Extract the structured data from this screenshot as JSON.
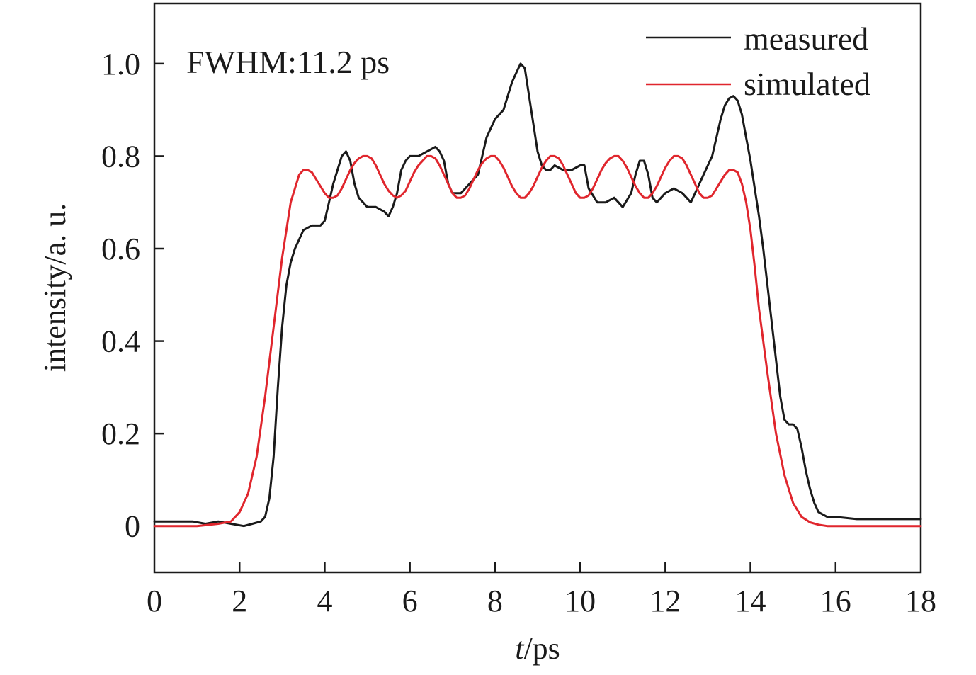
{
  "chart_data": {
    "type": "line",
    "title": "",
    "annotation": "FWHM:11.2 ps",
    "xlabel_italic": "t",
    "xlabel_unit": "/ps",
    "ylabel": "intensity/a. u.",
    "xlim": [
      0,
      18
    ],
    "ylim": [
      -0.1,
      1.13
    ],
    "xticks": [
      0,
      2,
      4,
      6,
      8,
      10,
      12,
      14,
      16,
      18
    ],
    "xtick_labels": [
      "0",
      "2",
      "4",
      "6",
      "8",
      "10",
      "12",
      "14",
      "16",
      "18"
    ],
    "yticks": [
      0,
      0.2,
      0.4,
      0.6,
      0.8,
      1.0
    ],
    "ytick_labels": [
      "0",
      "0.2",
      "0.4",
      "0.6",
      "0.8",
      "1.0"
    ],
    "grid": false,
    "legend_position": "top-right",
    "series": [
      {
        "name": "measured",
        "color": "#1a1a1a",
        "x": [
          0,
          0.3,
          0.6,
          0.9,
          1.2,
          1.5,
          1.8,
          2.1,
          2.3,
          2.5,
          2.6,
          2.7,
          2.8,
          2.9,
          3.0,
          3.1,
          3.2,
          3.3,
          3.4,
          3.5,
          3.6,
          3.7,
          3.8,
          3.9,
          4.0,
          4.1,
          4.2,
          4.3,
          4.4,
          4.5,
          4.6,
          4.7,
          4.8,
          4.9,
          5.0,
          5.2,
          5.4,
          5.5,
          5.6,
          5.7,
          5.8,
          5.9,
          6.0,
          6.2,
          6.4,
          6.6,
          6.7,
          6.8,
          6.9,
          7.0,
          7.1,
          7.2,
          7.4,
          7.6,
          7.8,
          8.0,
          8.2,
          8.3,
          8.4,
          8.5,
          8.6,
          8.7,
          8.8,
          8.9,
          9.0,
          9.1,
          9.2,
          9.3,
          9.4,
          9.6,
          9.8,
          10.0,
          10.1,
          10.2,
          10.4,
          10.6,
          10.8,
          11.0,
          11.2,
          11.3,
          11.4,
          11.5,
          11.6,
          11.7,
          11.8,
          11.9,
          12.0,
          12.2,
          12.4,
          12.6,
          12.8,
          13.0,
          13.1,
          13.2,
          13.3,
          13.4,
          13.5,
          13.6,
          13.7,
          13.8,
          13.9,
          14.0,
          14.1,
          14.2,
          14.3,
          14.4,
          14.5,
          14.6,
          14.7,
          14.8,
          14.9,
          15.0,
          15.1,
          15.2,
          15.3,
          15.4,
          15.5,
          15.6,
          15.8,
          16.0,
          16.5,
          17.0,
          17.5,
          18.0
        ],
        "y": [
          0.01,
          0.01,
          0.01,
          0.01,
          0.005,
          0.01,
          0.005,
          0.0,
          0.005,
          0.01,
          0.02,
          0.06,
          0.15,
          0.3,
          0.43,
          0.52,
          0.57,
          0.6,
          0.62,
          0.64,
          0.645,
          0.65,
          0.65,
          0.65,
          0.66,
          0.7,
          0.74,
          0.77,
          0.8,
          0.81,
          0.79,
          0.74,
          0.71,
          0.7,
          0.69,
          0.69,
          0.68,
          0.67,
          0.69,
          0.72,
          0.77,
          0.79,
          0.8,
          0.8,
          0.81,
          0.82,
          0.81,
          0.79,
          0.74,
          0.72,
          0.72,
          0.72,
          0.74,
          0.76,
          0.84,
          0.88,
          0.9,
          0.93,
          0.96,
          0.98,
          1.0,
          0.99,
          0.93,
          0.87,
          0.81,
          0.78,
          0.77,
          0.77,
          0.78,
          0.77,
          0.77,
          0.78,
          0.78,
          0.73,
          0.7,
          0.7,
          0.71,
          0.69,
          0.72,
          0.76,
          0.79,
          0.79,
          0.76,
          0.71,
          0.7,
          0.71,
          0.72,
          0.73,
          0.72,
          0.7,
          0.74,
          0.78,
          0.8,
          0.84,
          0.88,
          0.91,
          0.925,
          0.93,
          0.92,
          0.89,
          0.84,
          0.79,
          0.73,
          0.67,
          0.6,
          0.52,
          0.44,
          0.36,
          0.28,
          0.23,
          0.22,
          0.22,
          0.21,
          0.17,
          0.12,
          0.08,
          0.05,
          0.03,
          0.02,
          0.02,
          0.015,
          0.015,
          0.015,
          0.015
        ]
      },
      {
        "name": "simulated",
        "color": "#e0262d",
        "x": [
          0,
          0.5,
          1.0,
          1.5,
          1.8,
          2.0,
          2.2,
          2.4,
          2.6,
          2.8,
          3.0,
          3.2,
          3.4,
          3.5,
          3.6,
          3.7,
          3.8,
          3.9,
          4.0,
          4.1,
          4.2,
          4.3,
          4.4,
          4.5,
          4.6,
          4.7,
          4.8,
          4.9,
          5.0,
          5.1,
          5.2,
          5.3,
          5.4,
          5.5,
          5.6,
          5.7,
          5.8,
          5.9,
          6.0,
          6.1,
          6.2,
          6.3,
          6.4,
          6.5,
          6.6,
          6.7,
          6.8,
          6.9,
          7.0,
          7.1,
          7.2,
          7.3,
          7.4,
          7.5,
          7.6,
          7.7,
          7.8,
          7.9,
          8.0,
          8.1,
          8.2,
          8.3,
          8.4,
          8.5,
          8.6,
          8.7,
          8.8,
          8.9,
          9.0,
          9.1,
          9.2,
          9.3,
          9.4,
          9.5,
          9.6,
          9.7,
          9.8,
          9.9,
          10.0,
          10.1,
          10.2,
          10.3,
          10.4,
          10.5,
          10.6,
          10.7,
          10.8,
          10.9,
          11.0,
          11.1,
          11.2,
          11.3,
          11.4,
          11.5,
          11.6,
          11.7,
          11.8,
          11.9,
          12.0,
          12.1,
          12.2,
          12.3,
          12.4,
          12.5,
          12.6,
          12.7,
          12.8,
          12.9,
          13.0,
          13.1,
          13.2,
          13.3,
          13.4,
          13.5,
          13.6,
          13.7,
          13.8,
          13.9,
          14.0,
          14.1,
          14.2,
          14.4,
          14.6,
          14.8,
          15.0,
          15.2,
          15.4,
          15.6,
          15.8,
          16.0,
          16.3,
          16.6,
          17.0,
          17.5,
          18.0
        ],
        "y": [
          0.0,
          0.0,
          0.0,
          0.005,
          0.01,
          0.03,
          0.07,
          0.15,
          0.28,
          0.43,
          0.58,
          0.7,
          0.76,
          0.77,
          0.77,
          0.765,
          0.75,
          0.735,
          0.72,
          0.71,
          0.71,
          0.715,
          0.73,
          0.75,
          0.77,
          0.785,
          0.795,
          0.8,
          0.8,
          0.795,
          0.78,
          0.76,
          0.74,
          0.725,
          0.715,
          0.71,
          0.715,
          0.725,
          0.745,
          0.765,
          0.78,
          0.79,
          0.8,
          0.8,
          0.795,
          0.78,
          0.76,
          0.74,
          0.72,
          0.71,
          0.71,
          0.715,
          0.73,
          0.75,
          0.77,
          0.785,
          0.795,
          0.8,
          0.8,
          0.79,
          0.775,
          0.755,
          0.735,
          0.72,
          0.71,
          0.71,
          0.72,
          0.735,
          0.755,
          0.775,
          0.79,
          0.8,
          0.8,
          0.795,
          0.78,
          0.76,
          0.74,
          0.72,
          0.71,
          0.71,
          0.715,
          0.73,
          0.75,
          0.77,
          0.785,
          0.795,
          0.8,
          0.8,
          0.79,
          0.775,
          0.755,
          0.735,
          0.72,
          0.71,
          0.71,
          0.72,
          0.735,
          0.755,
          0.775,
          0.79,
          0.8,
          0.8,
          0.795,
          0.78,
          0.76,
          0.74,
          0.72,
          0.71,
          0.71,
          0.715,
          0.73,
          0.745,
          0.76,
          0.77,
          0.77,
          0.765,
          0.74,
          0.7,
          0.64,
          0.56,
          0.47,
          0.33,
          0.2,
          0.11,
          0.05,
          0.02,
          0.008,
          0.003,
          0.0,
          0.0,
          0.0,
          0.0,
          0.0,
          0.0,
          0.0
        ]
      }
    ]
  }
}
